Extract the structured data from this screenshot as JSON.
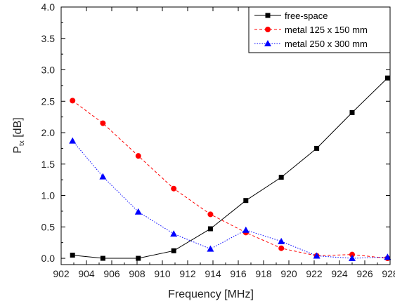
{
  "chart_data": {
    "type": "line",
    "xlabel": "Frequency [MHz]",
    "ylabel_main": "P",
    "ylabel_sub": "tx",
    "ylabel_suffix": " [dB]",
    "xlim": [
      902,
      928
    ],
    "ylim": [
      -0.1,
      4.0
    ],
    "xticks": [
      902,
      904,
      906,
      908,
      910,
      912,
      914,
      916,
      918,
      920,
      922,
      924,
      926,
      928
    ],
    "yticks": [
      0.0,
      0.5,
      1.0,
      1.5,
      2.0,
      2.5,
      3.0,
      3.5,
      4.0
    ],
    "ytick_labels": [
      "0.0",
      "0.5",
      "1.0",
      "1.5",
      "2.0",
      "2.5",
      "3.0",
      "3.5",
      "4.0"
    ],
    "x": [
      902.9,
      905.3,
      908.1,
      910.9,
      913.8,
      916.6,
      919.4,
      922.2,
      925.0,
      927.8
    ],
    "legend_position": "top-right",
    "series": [
      {
        "name": "free-space",
        "color": "#000000",
        "marker": "square",
        "line_style": "solid",
        "values": [
          0.05,
          0.0,
          0.0,
          0.12,
          0.47,
          0.92,
          1.29,
          1.75,
          2.32,
          2.87
        ]
      },
      {
        "name": "metal 125 x 150 mm",
        "color": "#ff0000",
        "marker": "circle",
        "line_style": "dashed",
        "values": [
          2.51,
          2.15,
          1.63,
          1.11,
          0.7,
          0.41,
          0.16,
          0.04,
          0.06,
          0.0
        ]
      },
      {
        "name": "metal 250 x 300 mm",
        "color": "#0000ff",
        "marker": "triangle",
        "line_style": "dotted",
        "values": [
          1.87,
          1.3,
          0.74,
          0.39,
          0.15,
          0.45,
          0.27,
          0.04,
          0.0,
          0.02
        ]
      }
    ]
  }
}
